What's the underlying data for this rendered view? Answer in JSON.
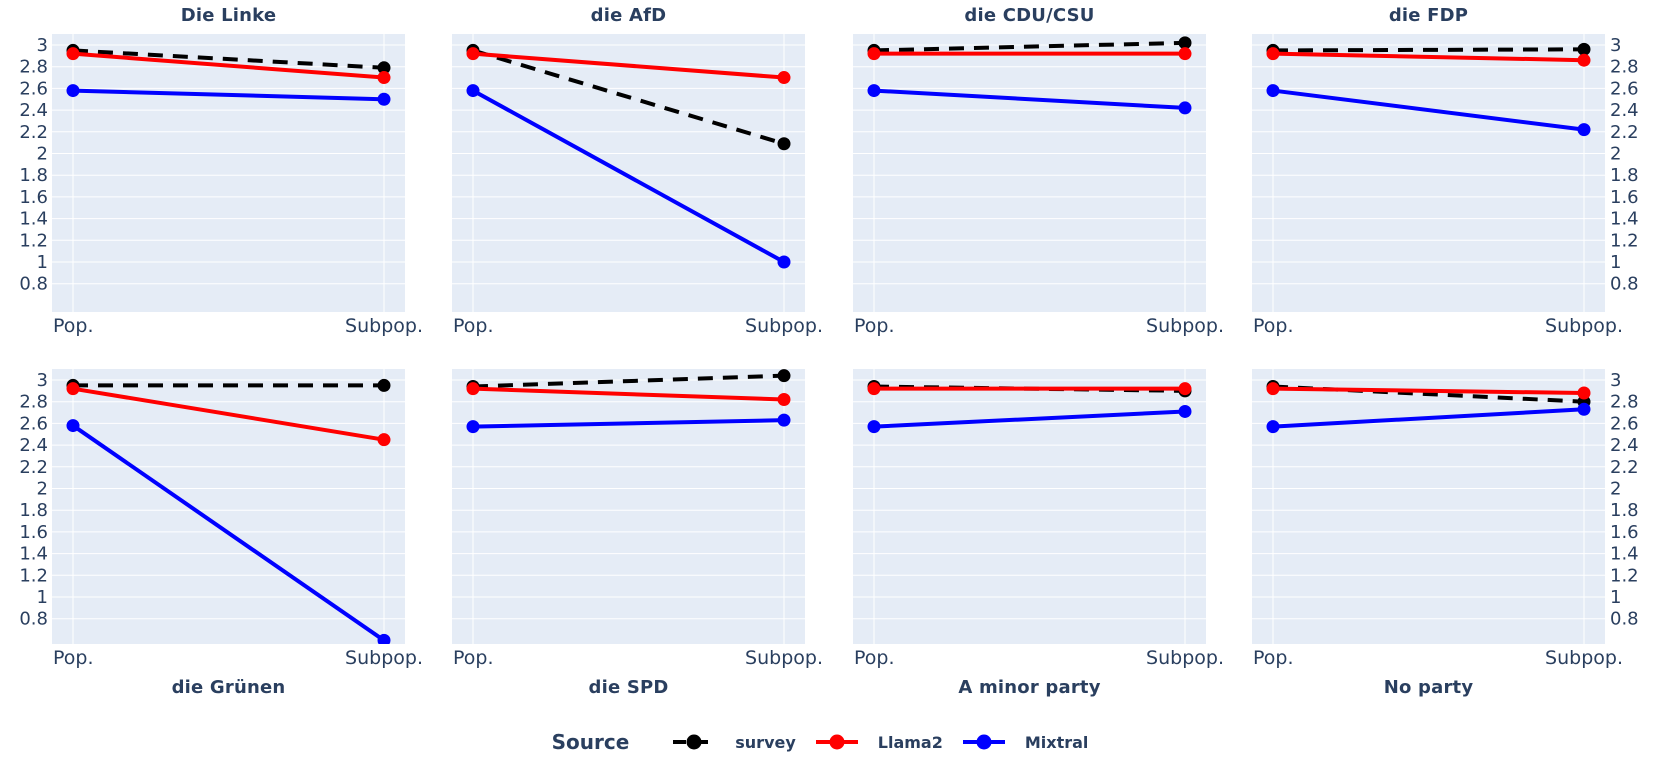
{
  "legend": {
    "title": "Source",
    "items": [
      {
        "label": "survey",
        "color": "#000000",
        "dash": "dashed"
      },
      {
        "label": "Llama2",
        "color": "#ff0000",
        "dash": "solid"
      },
      {
        "label": "Mixtral",
        "color": "#0000ff",
        "dash": "solid"
      }
    ]
  },
  "axes": {
    "x_tick_labels": [
      "Pop.",
      "Subpop."
    ],
    "y_tick_labels": [
      "3",
      "2.8",
      "2.6",
      "2.4",
      "2.2",
      "2",
      "1.8",
      "1.6",
      "1.4",
      "1.2",
      "1",
      "0.8"
    ]
  },
  "style": {
    "panel_bg": "#e5ecf6",
    "grid_color": "#ffffff",
    "text_color": "#2a3f5f"
  },
  "chart_data": {
    "type": "line",
    "x": [
      "Pop.",
      "Subpop."
    ],
    "ylim": [
      0.57,
      3.1
    ],
    "y_ticks": [
      3,
      2.8,
      2.6,
      2.4,
      2.2,
      2,
      1.8,
      1.6,
      1.4,
      1.2,
      1,
      0.8
    ],
    "grid": true,
    "legend_position": "bottom",
    "legend_title": "Source",
    "series_names": [
      "survey",
      "Llama2",
      "Mixtral"
    ],
    "series_colors": {
      "survey": "#000000",
      "Llama2": "#ff0000",
      "Mixtral": "#0000ff"
    },
    "series_dash": {
      "survey": "dashed",
      "Llama2": "solid",
      "Mixtral": "solid"
    },
    "facets": [
      {
        "title": "Die Linke",
        "row": 0,
        "col": 0,
        "series": [
          {
            "name": "survey",
            "values": [
              2.95,
              2.79
            ]
          },
          {
            "name": "Llama2",
            "values": [
              2.92,
              2.7
            ]
          },
          {
            "name": "Mixtral",
            "values": [
              2.58,
              2.5
            ]
          }
        ]
      },
      {
        "title": "die AfD",
        "row": 0,
        "col": 1,
        "series": [
          {
            "name": "survey",
            "values": [
              2.95,
              2.09
            ]
          },
          {
            "name": "Llama2",
            "values": [
              2.92,
              2.7
            ]
          },
          {
            "name": "Mixtral",
            "values": [
              2.58,
              1.0
            ]
          }
        ]
      },
      {
        "title": "die CDU/CSU",
        "row": 0,
        "col": 2,
        "series": [
          {
            "name": "survey",
            "values": [
              2.95,
              3.02
            ]
          },
          {
            "name": "Llama2",
            "values": [
              2.92,
              2.92
            ]
          },
          {
            "name": "Mixtral",
            "values": [
              2.58,
              2.42
            ]
          }
        ]
      },
      {
        "title": "die FDP",
        "row": 0,
        "col": 3,
        "series": [
          {
            "name": "survey",
            "values": [
              2.95,
              2.96
            ]
          },
          {
            "name": "Llama2",
            "values": [
              2.92,
              2.86
            ]
          },
          {
            "name": "Mixtral",
            "values": [
              2.58,
              2.22
            ]
          }
        ]
      },
      {
        "title": "die Grünen",
        "row": 1,
        "col": 0,
        "series": [
          {
            "name": "survey",
            "values": [
              2.95,
              2.95
            ]
          },
          {
            "name": "Llama2",
            "values": [
              2.92,
              2.45
            ]
          },
          {
            "name": "Mixtral",
            "values": [
              2.58,
              0.6
            ]
          }
        ]
      },
      {
        "title": "die SPD",
        "row": 1,
        "col": 1,
        "series": [
          {
            "name": "survey",
            "values": [
              2.94,
              3.04
            ]
          },
          {
            "name": "Llama2",
            "values": [
              2.92,
              2.82
            ]
          },
          {
            "name": "Mixtral",
            "values": [
              2.57,
              2.63
            ]
          }
        ]
      },
      {
        "title": "A minor party",
        "row": 1,
        "col": 2,
        "series": [
          {
            "name": "survey",
            "values": [
              2.94,
              2.9
            ]
          },
          {
            "name": "Llama2",
            "values": [
              2.92,
              2.92
            ]
          },
          {
            "name": "Mixtral",
            "values": [
              2.57,
              2.71
            ]
          }
        ]
      },
      {
        "title": "No party",
        "row": 1,
        "col": 3,
        "series": [
          {
            "name": "survey",
            "values": [
              2.94,
              2.8
            ]
          },
          {
            "name": "Llama2",
            "values": [
              2.92,
              2.88
            ]
          },
          {
            "name": "Mixtral",
            "values": [
              2.57,
              2.73
            ]
          }
        ]
      }
    ]
  }
}
